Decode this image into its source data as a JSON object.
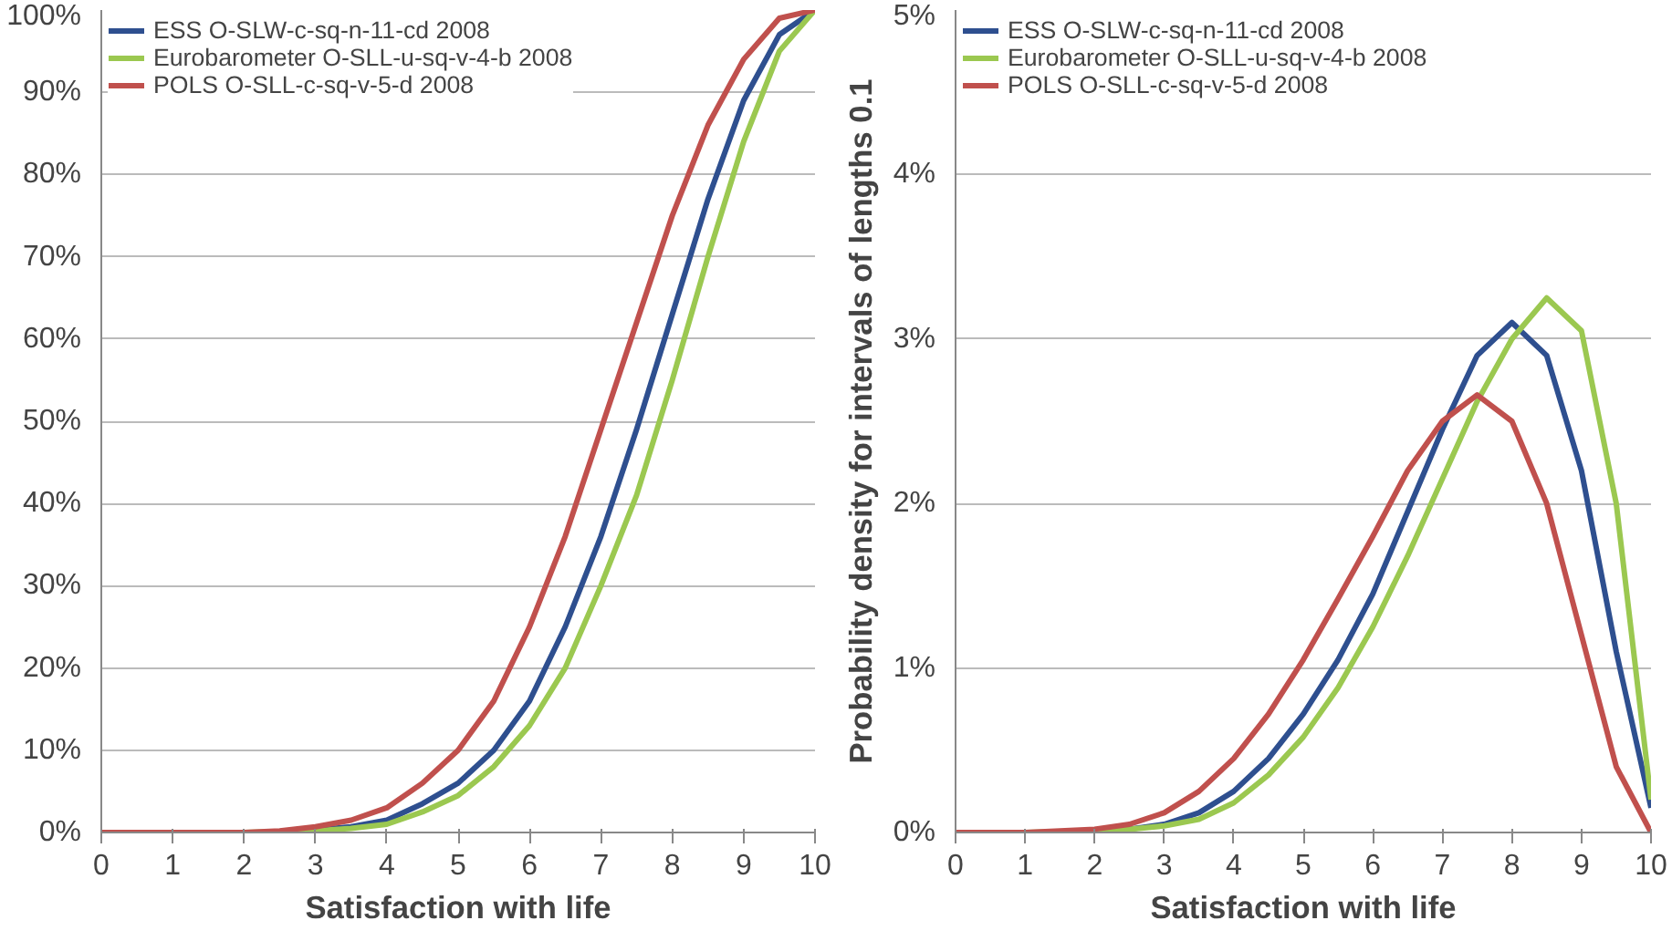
{
  "chart_data": [
    {
      "type": "line",
      "xlabel": "Satisfaction with life",
      "legend": "top",
      "grid": "y",
      "line_style": "solid",
      "marker": "none",
      "xlim": [
        0,
        10
      ],
      "xticks": [
        0,
        1,
        2,
        3,
        4,
        5,
        6,
        7,
        8,
        9,
        10
      ],
      "ylim": [
        0,
        100
      ],
      "yticks": [
        {
          "value": 0,
          "label": "0%"
        },
        {
          "value": 10,
          "label": "10%"
        },
        {
          "value": 20,
          "label": "20%"
        },
        {
          "value": 30,
          "label": "30%"
        },
        {
          "value": 40,
          "label": "40%"
        },
        {
          "value": 50,
          "label": "50%"
        },
        {
          "value": 60,
          "label": "60%"
        },
        {
          "value": 70,
          "label": "70%"
        },
        {
          "value": 80,
          "label": "80%"
        },
        {
          "value": 90,
          "label": "90%"
        },
        {
          "value": 100,
          "label": "100%"
        }
      ],
      "x": [
        0,
        1,
        2,
        2.5,
        3,
        3.5,
        4,
        4.5,
        5,
        5.5,
        6,
        6.5,
        7,
        7.5,
        8,
        8.5,
        9,
        9.5,
        10
      ],
      "series": [
        {
          "name": "ESS O-SLW-c-sq-n-11-cd 2008",
          "color": "#2e4f8f",
          "values": [
            null,
            null,
            null,
            0.1,
            0.3,
            0.7,
            1.5,
            3.5,
            6,
            10,
            16,
            25,
            36,
            49,
            63,
            77,
            89,
            97,
            100
          ]
        },
        {
          "name": "Eurobarometer O-SLL-u-sq-v-4-b 2008",
          "color": "#9bc850",
          "values": [
            null,
            null,
            0,
            0.1,
            0.2,
            0.5,
            1,
            2.5,
            4.5,
            8,
            13,
            20,
            30,
            41,
            55,
            70,
            84,
            95,
            100
          ]
        },
        {
          "name": "POLS O-SLL-c-sq-v-5-d 2008",
          "color": "#c0504d",
          "values": [
            0,
            0,
            0,
            0.2,
            0.7,
            1.5,
            3,
            6,
            10,
            16,
            25,
            36,
            49,
            62,
            75,
            86,
            94,
            99,
            100
          ]
        }
      ]
    },
    {
      "type": "line",
      "xlabel": "Satisfaction with life",
      "ylabel": "Probability density for intervals of lengths 0.1",
      "legend": "top",
      "grid": "y",
      "line_style": "solid",
      "marker": "none",
      "xlim": [
        0,
        10
      ],
      "xticks": [
        0,
        1,
        2,
        3,
        4,
        5,
        6,
        7,
        8,
        9,
        10
      ],
      "ylim": [
        0,
        5
      ],
      "yticks": [
        {
          "value": 0,
          "label": "0%"
        },
        {
          "value": 1,
          "label": "1%"
        },
        {
          "value": 2,
          "label": "2%"
        },
        {
          "value": 3,
          "label": "3%"
        },
        {
          "value": 4,
          "label": "4%"
        },
        {
          "value": 5,
          "label": "5%"
        }
      ],
      "x": [
        0,
        1,
        2,
        2.5,
        3,
        3.5,
        4,
        4.5,
        5,
        5.5,
        6,
        6.5,
        7,
        7.5,
        8,
        8.5,
        9,
        9.5,
        10
      ],
      "series": [
        {
          "name": "ESS O-SLW-c-sq-n-11-cd 2008",
          "color": "#2e4f8f",
          "values": [
            null,
            null,
            0.01,
            0.02,
            0.05,
            0.12,
            0.25,
            0.45,
            0.72,
            1.05,
            1.45,
            1.95,
            2.45,
            2.9,
            3.1,
            2.9,
            2.2,
            1.1,
            0.15
          ]
        },
        {
          "name": "Eurobarometer O-SLL-u-sq-v-4-b 2008",
          "color": "#9bc850",
          "values": [
            0,
            0,
            0.01,
            0.02,
            0.04,
            0.08,
            0.18,
            0.35,
            0.58,
            0.88,
            1.25,
            1.68,
            2.15,
            2.62,
            3.0,
            3.25,
            3.05,
            2.0,
            0.2
          ]
        },
        {
          "name": "POLS O-SLL-c-sq-v-5-d 2008",
          "color": "#c0504d",
          "values": [
            0,
            0,
            0.02,
            0.05,
            0.12,
            0.25,
            0.45,
            0.72,
            1.05,
            1.42,
            1.8,
            2.2,
            2.5,
            2.66,
            2.5,
            2.0,
            1.2,
            0.4,
            0
          ]
        }
      ]
    }
  ]
}
